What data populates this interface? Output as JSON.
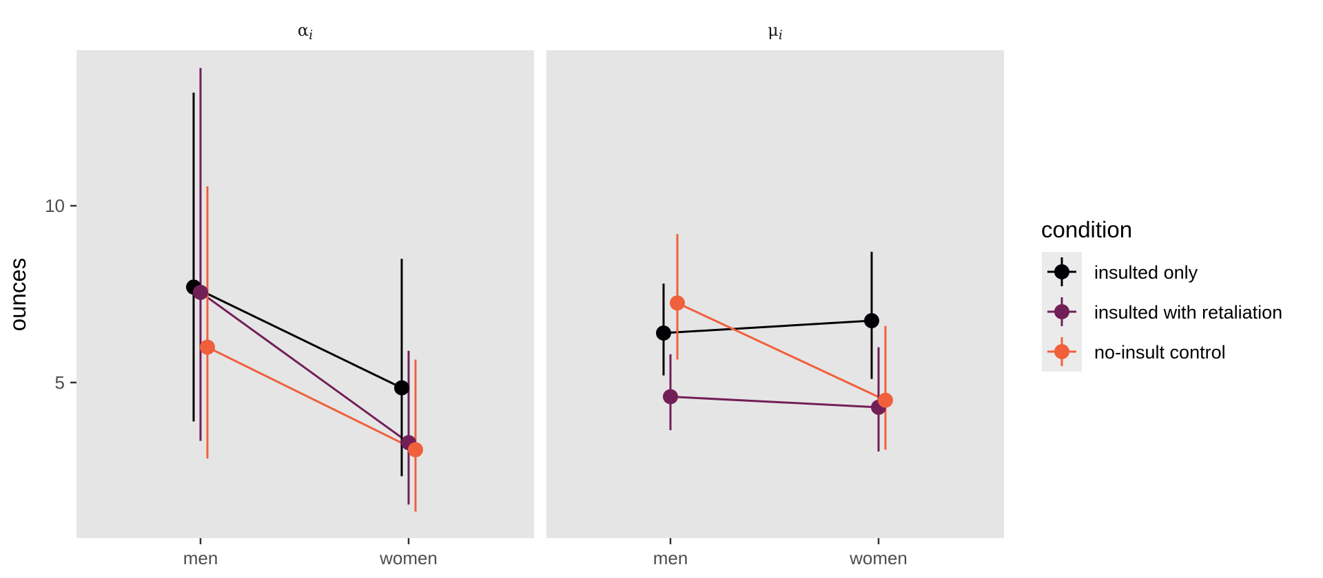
{
  "chart_data": {
    "type": "scatter",
    "y_axis": {
      "label": "ounces",
      "range": [
        0.6,
        14.4
      ],
      "ticks": [
        5,
        10
      ],
      "tick_labels": [
        "5",
        "10"
      ]
    },
    "categories": [
      "men",
      "women"
    ],
    "colors": {
      "insulted_only": "#000004",
      "insulted_with_retaliation": "#721F57",
      "no_insult_control": "#F0603C",
      "panel_background": "#E5E5E5",
      "legend_key_background": "#EBEBEB"
    },
    "legend": {
      "title": "condition",
      "position": "right",
      "entries": [
        {
          "key": "insulted_only",
          "label": "insulted only"
        },
        {
          "key": "insulted_with_retaliation",
          "label": "insulted with retaliation"
        },
        {
          "key": "no_insult_control",
          "label": "no-insult control"
        }
      ]
    },
    "panels": [
      {
        "label": "αi",
        "label_main": "α",
        "label_sub": "i",
        "series": [
          {
            "key": "insulted_only",
            "name": "insulted only",
            "points": [
              {
                "x": "men",
                "y": 7.7,
                "lower": 3.9,
                "upper": 13.2
              },
              {
                "x": "women",
                "y": 4.85,
                "lower": 2.35,
                "upper": 8.5
              }
            ]
          },
          {
            "key": "insulted_with_retaliation",
            "name": "insulted with retaliation",
            "points": [
              {
                "x": "men",
                "y": 7.55,
                "lower": 3.35,
                "upper": 13.9
              },
              {
                "x": "women",
                "y": 3.3,
                "lower": 1.55,
                "upper": 5.9
              }
            ]
          },
          {
            "key": "no_insult_control",
            "name": "no-insult control",
            "points": [
              {
                "x": "men",
                "y": 6.0,
                "lower": 2.85,
                "upper": 10.55
              },
              {
                "x": "women",
                "y": 3.1,
                "lower": 1.35,
                "upper": 5.65
              }
            ]
          }
        ]
      },
      {
        "label": "μi",
        "label_main": "μ",
        "label_sub": "i",
        "series": [
          {
            "key": "insulted_only",
            "name": "insulted only",
            "points": [
              {
                "x": "men",
                "y": 6.4,
                "lower": 5.2,
                "upper": 7.8
              },
              {
                "x": "women",
                "y": 6.75,
                "lower": 5.1,
                "upper": 8.7
              }
            ]
          },
          {
            "key": "insulted_with_retaliation",
            "name": "insulted with retaliation",
            "points": [
              {
                "x": "men",
                "y": 4.6,
                "lower": 3.65,
                "upper": 5.8
              },
              {
                "x": "women",
                "y": 4.3,
                "lower": 3.05,
                "upper": 6.0
              }
            ]
          },
          {
            "key": "no_insult_control",
            "name": "no-insult control",
            "points": [
              {
                "x": "men",
                "y": 7.25,
                "lower": 5.65,
                "upper": 9.2
              },
              {
                "x": "women",
                "y": 4.5,
                "lower": 3.1,
                "upper": 6.6
              }
            ]
          }
        ]
      }
    ]
  }
}
